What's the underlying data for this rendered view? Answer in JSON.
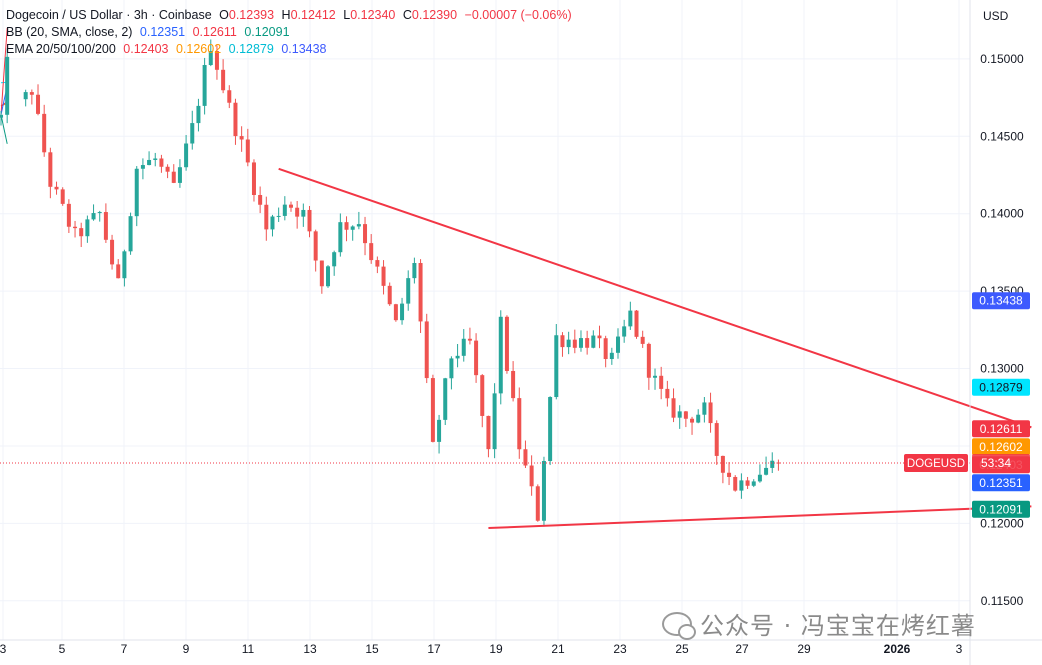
{
  "header": {
    "symbol_title": "Dogecoin / US Dollar · 3h · Coinbase",
    "ohlc": [
      {
        "key": "O",
        "value": "0.12393"
      },
      {
        "key": "H",
        "value": "0.12412"
      },
      {
        "key": "L",
        "value": "0.12340"
      },
      {
        "key": "C",
        "value": "0.12390"
      }
    ],
    "change": "−0.00007 (−0.06%)",
    "bb_label": "BB (20, SMA, close, 2)",
    "bb_values": [
      "0.12351",
      "0.12611",
      "0.12091"
    ],
    "ema_label": "EMA 20/50/100/200",
    "ema_values": [
      "0.12403",
      "0.12602",
      "0.12879",
      "0.13438"
    ]
  },
  "currency": "USD",
  "watermark": "公众号 · 冯宝宝在烤红薯",
  "colors": {
    "bull": "#26a69a",
    "bear": "#ef5350",
    "neg_text": "#f23645",
    "bb_basis": "#2962ff",
    "bb_upper": "#f23645",
    "bb_lower": "#089981",
    "ema20": "#f23645",
    "ema50": "#ff9800",
    "ema100": "#00e5ff",
    "ema200": "#3d5afe",
    "trendline": "#f23645",
    "last_price": "#f23645"
  },
  "chart_data": {
    "type": "candlestick",
    "symbol": "DOGEUSD",
    "y_axis": {
      "ticks": [
        "0.11500",
        "0.12000",
        "0.12500",
        "0.13000",
        "0.13500",
        "0.14000",
        "0.14500",
        "0.15000"
      ],
      "range": [
        0.1115,
        0.1538
      ]
    },
    "x_axis": {
      "ticks": [
        "3",
        "5",
        "7",
        "9",
        "11",
        "13",
        "15",
        "17",
        "19",
        "21",
        "23",
        "25",
        "27",
        "29",
        "2026",
        "3"
      ]
    },
    "price_labels": [
      {
        "text": "0.13438",
        "value": 0.13438,
        "color": "#3d5afe"
      },
      {
        "text": "0.12879",
        "value": 0.12879,
        "color": "#00e5ff",
        "text_color": "#131722"
      },
      {
        "text": "0.12611",
        "value": 0.12611,
        "color": "#f23645"
      },
      {
        "text": "0.12602",
        "value": 0.12602,
        "color": "#ff9800"
      },
      {
        "text": "0.12403",
        "value": 0.12403,
        "color": "#f23645"
      },
      {
        "text": "0.12351",
        "value": 0.12351,
        "color": "#2962ff"
      },
      {
        "text": "0.12091",
        "value": 0.12091,
        "color": "#089981"
      }
    ],
    "last_price": {
      "value": 0.1239,
      "symbol_tag": "DOGEUSD",
      "countdown": "53:34"
    },
    "anchors": [
      [
        0,
        0.1462
      ],
      [
        1.5,
        0.1512
      ],
      [
        3,
        0.147
      ],
      [
        5,
        0.148
      ],
      [
        8,
        0.142
      ],
      [
        12,
        0.1385
      ],
      [
        16,
        0.14
      ],
      [
        19,
        0.1353
      ],
      [
        22,
        0.143
      ],
      [
        25,
        0.1435
      ],
      [
        28,
        0.1415
      ],
      [
        31,
        0.1455
      ],
      [
        34,
        0.151
      ],
      [
        37,
        0.1468
      ],
      [
        40,
        0.1432
      ],
      [
        43,
        0.139
      ],
      [
        46,
        0.1408
      ],
      [
        49,
        0.14
      ],
      [
        52,
        0.1355
      ],
      [
        55,
        0.1392
      ],
      [
        58,
        0.1395
      ],
      [
        61,
        0.1362
      ],
      [
        64,
        0.1328
      ],
      [
        67,
        0.137
      ],
      [
        70,
        0.1248
      ],
      [
        73,
        0.1308
      ],
      [
        76,
        0.1316
      ],
      [
        79,
        0.1245
      ],
      [
        81,
        0.1328
      ],
      [
        84,
        0.125
      ],
      [
        87,
        0.1205
      ],
      [
        90,
        0.132
      ],
      [
        93,
        0.1318
      ],
      [
        96,
        0.1318
      ],
      [
        99,
        0.1305
      ],
      [
        102,
        0.1335
      ],
      [
        105,
        0.13
      ],
      [
        108,
        0.1275
      ],
      [
        111,
        0.1268
      ],
      [
        114,
        0.1273
      ],
      [
        116,
        0.1245
      ],
      [
        119,
        0.1224
      ],
      [
        122,
        0.1232
      ],
      [
        125,
        0.1238
      ],
      [
        126,
        0.1239
      ]
    ],
    "trendlines": [
      {
        "name": "upper",
        "from": [
          45,
          0.1429
        ],
        "to": [
          167,
          0.1262
        ]
      },
      {
        "name": "lower",
        "from": [
          79,
          0.1197
        ],
        "to": [
          167,
          0.1211
        ]
      }
    ]
  }
}
